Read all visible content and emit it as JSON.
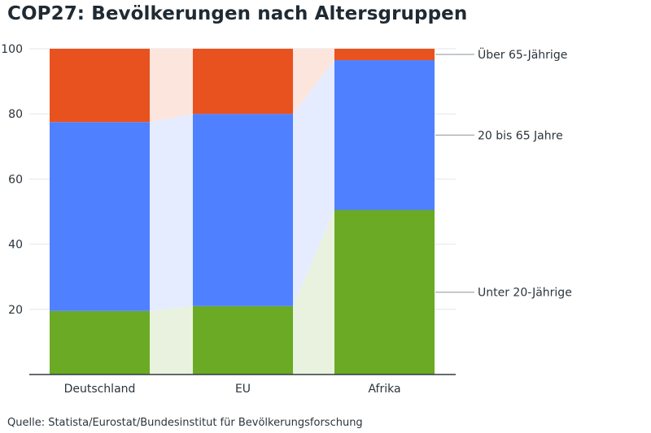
{
  "chart_data": {
    "type": "bar",
    "stacked": true,
    "title": "COP27: Bevölkerungen nach Altersgruppen",
    "source": "Quelle: Statista/Eurostat/Bundesinstitut für Bevölkerungsforschung",
    "categories": [
      "Deutschland",
      "EU",
      "Afrika"
    ],
    "series": [
      {
        "name": "Unter 20-Jährige",
        "color": "#6aaa24",
        "values": [
          19.5,
          21,
          50.5
        ]
      },
      {
        "name": "20 bis 65 Jahre",
        "color": "#4f80ff",
        "values": [
          58,
          59,
          46
        ]
      },
      {
        "name": "Über 65-Jährige",
        "color": "#e8521f",
        "values": [
          22.5,
          20,
          3.5
        ]
      }
    ],
    "yticks": [
      20,
      40,
      60,
      80,
      100
    ],
    "ylim": [
      0,
      100
    ],
    "xlabel": "",
    "ylabel": "",
    "grid": true,
    "legend": "right"
  }
}
